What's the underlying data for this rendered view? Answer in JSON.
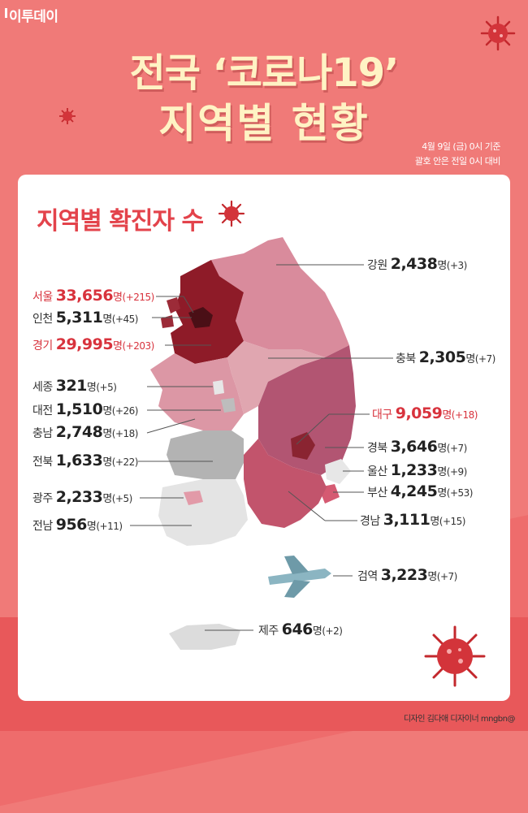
{
  "brand": "이투데이",
  "title": {
    "line1": "전국 ‘코로나19’",
    "line2": "지역별 현황"
  },
  "notes": {
    "date": "4월 9일 (금) 0시 기준",
    "compare": "괄호 안은 전일 0시 대비"
  },
  "section_title": "지역별 확진자 수",
  "unit": "명",
  "regions": {
    "gangwon": {
      "name": "강원",
      "count": "2,438",
      "change": "(+3)"
    },
    "seoul": {
      "name": "서울",
      "count": "33,656",
      "change": "(+215)"
    },
    "incheon": {
      "name": "인천",
      "count": "5,311",
      "change": "(+45)"
    },
    "gyeonggi": {
      "name": "경기",
      "count": "29,995",
      "change": "(+203)"
    },
    "chungbuk": {
      "name": "충북",
      "count": "2,305",
      "change": "(+7)"
    },
    "sejong": {
      "name": "세종",
      "count": "321",
      "change": "(+5)"
    },
    "daejeon": {
      "name": "대전",
      "count": "1,510",
      "change": "(+26)"
    },
    "chungnam": {
      "name": "충남",
      "count": "2,748",
      "change": "(+18)"
    },
    "daegu": {
      "name": "대구",
      "count": "9,059",
      "change": "(+18)"
    },
    "gyeongbuk": {
      "name": "경북",
      "count": "3,646",
      "change": "(+7)"
    },
    "jeonbuk": {
      "name": "전북",
      "count": "1,633",
      "change": "(+22)"
    },
    "ulsan": {
      "name": "울산",
      "count": "1,233",
      "change": "(+9)"
    },
    "busan": {
      "name": "부산",
      "count": "4,245",
      "change": "(+53)"
    },
    "gwangju": {
      "name": "광주",
      "count": "2,233",
      "change": "(+5)"
    },
    "gyeongnam": {
      "name": "경남",
      "count": "3,111",
      "change": "(+15)"
    },
    "jeonnam": {
      "name": "전남",
      "count": "956",
      "change": "(+11)"
    },
    "quarantine": {
      "name": "검역",
      "count": "3,223",
      "change": "(+7)"
    },
    "jeju": {
      "name": "제주",
      "count": "646",
      "change": "(+2)"
    }
  },
  "credit": "디자인 김다애 디자이너 mngbn@",
  "colors": {
    "background": "#f07a78",
    "title": "#fff3c4",
    "accent_red": "#d8333d",
    "dark_region": "#8e1b28"
  }
}
